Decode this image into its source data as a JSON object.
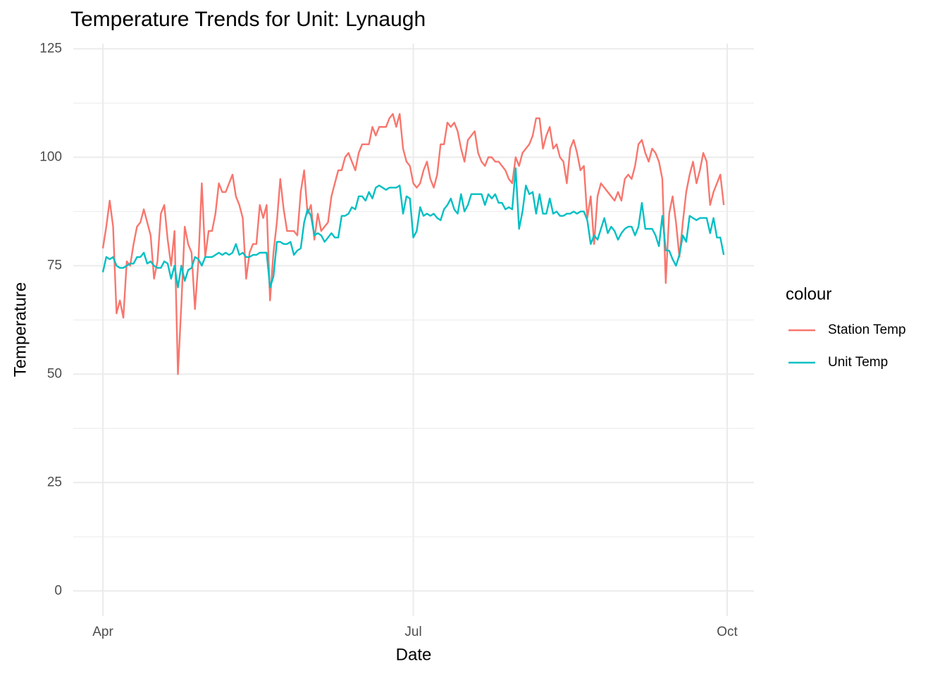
{
  "chart_data": {
    "type": "line",
    "title": "Temperature Trends for Unit: Lynaugh",
    "x_label": "Date",
    "y_label": "Temperature",
    "legend_title": "colour",
    "legend_position": "right",
    "grid": true,
    "ylim": [
      -5.8,
      126.2
    ],
    "yticks": [
      0,
      25,
      50,
      75,
      100,
      125
    ],
    "yminor": [
      12.5,
      37.5,
      62.5,
      87.5,
      112.5
    ],
    "categories": [
      "Apr",
      null,
      null,
      null,
      null,
      null,
      null,
      null,
      null,
      null,
      null,
      null,
      null,
      null,
      null,
      null,
      null,
      null,
      null,
      null,
      null,
      null,
      null,
      null,
      null,
      null,
      null,
      null,
      null,
      null,
      null,
      null,
      null,
      null,
      null,
      null,
      null,
      null,
      null,
      null,
      null,
      null,
      null,
      null,
      null,
      null,
      null,
      null,
      null,
      null,
      null,
      null,
      null,
      null,
      null,
      null,
      null,
      null,
      null,
      null,
      null,
      null,
      null,
      null,
      null,
      null,
      null,
      null,
      null,
      null,
      null,
      null,
      null,
      null,
      null,
      null,
      null,
      null,
      null,
      null,
      null,
      null,
      null,
      null,
      null,
      null,
      null,
      null,
      null,
      null,
      null,
      "Jul",
      null,
      null,
      null,
      null,
      null,
      null,
      null,
      null,
      null,
      null,
      null,
      null,
      null,
      null,
      null,
      null,
      null,
      null,
      null,
      null,
      null,
      null,
      null,
      null,
      null,
      null,
      null,
      null,
      null,
      null,
      null,
      null,
      null,
      null,
      null,
      null,
      null,
      null,
      null,
      null,
      null,
      null,
      null,
      null,
      null,
      null,
      null,
      null,
      null,
      null,
      null,
      null,
      null,
      null,
      null,
      null,
      null,
      null,
      null,
      null,
      null,
      null,
      null,
      null,
      null,
      null,
      null,
      null,
      null,
      null,
      null,
      null,
      null,
      null,
      null,
      null,
      null,
      null,
      null,
      null,
      null,
      null,
      null,
      null,
      null,
      null,
      null,
      null,
      null,
      null,
      null,
      "Oct"
    ],
    "series": [
      {
        "name": "Station Temp",
        "color": "#f8766d",
        "values": [
          79,
          84,
          90,
          84,
          64,
          67,
          63,
          76,
          75,
          80,
          84,
          85,
          88,
          85,
          82,
          72,
          76,
          87,
          89,
          81,
          75,
          83,
          50,
          66,
          84,
          80,
          78,
          65,
          76,
          94,
          77,
          83,
          83,
          87,
          94,
          92,
          92,
          94,
          96,
          91,
          89,
          86,
          72,
          78,
          80,
          80,
          89,
          86,
          89,
          67,
          78,
          85,
          95,
          88,
          83,
          83,
          83,
          82,
          92,
          97,
          87,
          89,
          81,
          87,
          83,
          84,
          85,
          91,
          94,
          97,
          97,
          100,
          101,
          99,
          97,
          101,
          103,
          103,
          103,
          107,
          105,
          107,
          107,
          107,
          109,
          110,
          107,
          110,
          102,
          99,
          98,
          94,
          93,
          94,
          97,
          99,
          95,
          93,
          96,
          103,
          103,
          108,
          107,
          108,
          106,
          102,
          99,
          104,
          105,
          106,
          101,
          99,
          98,
          100,
          100,
          99,
          99,
          98,
          97,
          95,
          94,
          100,
          98,
          101,
          102,
          103,
          105,
          109,
          109,
          102,
          105,
          107,
          102,
          103,
          100,
          99,
          94,
          102,
          104,
          101,
          97,
          98,
          86,
          91,
          80,
          91,
          94,
          93,
          92,
          91,
          90,
          92,
          90,
          95,
          96,
          95,
          98,
          103,
          104,
          101,
          99,
          102,
          101,
          99,
          95,
          71,
          87,
          91,
          85,
          77,
          85,
          92,
          96,
          99,
          94,
          97,
          101,
          99,
          89,
          92,
          94,
          96,
          89,
          null
        ]
      },
      {
        "name": "Unit Temp",
        "color": "#00bfc4",
        "values": [
          73.5,
          77,
          76.5,
          77,
          75,
          74.5,
          74.5,
          75,
          75.5,
          75.5,
          77,
          77,
          78,
          75.5,
          76,
          75,
          74.5,
          74.5,
          76,
          75.5,
          72,
          75,
          70,
          75,
          71.5,
          74,
          74.5,
          77,
          76.5,
          75,
          77,
          77,
          77,
          77.5,
          78,
          77.5,
          78,
          77.5,
          78,
          80,
          77.5,
          78,
          77,
          77,
          77.5,
          77.5,
          78,
          78,
          78,
          70,
          72.5,
          80.5,
          80.5,
          80,
          80,
          80.5,
          77.5,
          78.5,
          79,
          85,
          88,
          86.5,
          82,
          82.5,
          82,
          80.5,
          81.5,
          82.5,
          81.5,
          81.5,
          86.5,
          86.5,
          87,
          88.5,
          88,
          91,
          91,
          90,
          92,
          90.5,
          93,
          93.5,
          93,
          92.5,
          93,
          93,
          93,
          93.5,
          87,
          91,
          90.5,
          81.5,
          83,
          88.5,
          86.5,
          87,
          86.5,
          87,
          86,
          85.5,
          88,
          89,
          90.5,
          88,
          87,
          91.5,
          87.5,
          89,
          91.5,
          91.5,
          91.5,
          91.5,
          89,
          91.5,
          90.5,
          91.5,
          89.5,
          89.5,
          88,
          88.5,
          88,
          97.5,
          83.5,
          87.5,
          93.5,
          91.5,
          92,
          87,
          91.5,
          87,
          87,
          90.5,
          87,
          87.5,
          86.5,
          86.5,
          87,
          87,
          87.5,
          87,
          87.5,
          87.5,
          85.5,
          80,
          82,
          81,
          83.5,
          86,
          82.5,
          84,
          83,
          81,
          82.5,
          83.5,
          84,
          84,
          82,
          84,
          89.5,
          83.5,
          83.5,
          83.5,
          82,
          79.5,
          86.5,
          78.5,
          78.5,
          76.5,
          75,
          77.5,
          82,
          80.5,
          86.5,
          86,
          85.5,
          86,
          86,
          86,
          82.5,
          86,
          81.5,
          81.5,
          77.5,
          null
        ]
      }
    ]
  }
}
